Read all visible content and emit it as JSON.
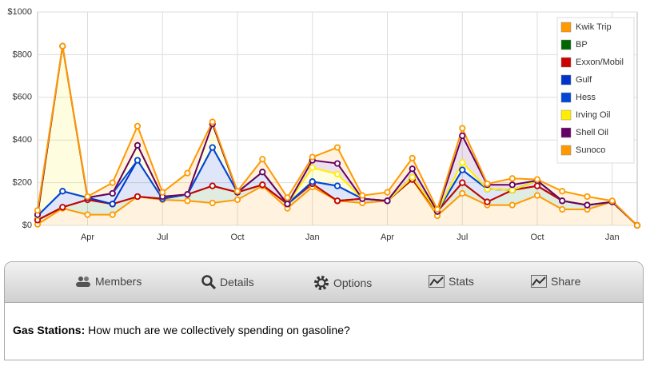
{
  "chart_data": {
    "type": "area",
    "stacked": true,
    "categories": [
      null,
      null,
      "Apr",
      null,
      null,
      "Jul",
      null,
      null,
      "Oct",
      null,
      null,
      "Jan",
      null,
      null,
      "Apr",
      null,
      null,
      "Jul",
      null,
      null,
      "Oct",
      null,
      null,
      "Jan",
      null
    ],
    "series": [
      {
        "name": "Kwik Trip",
        "color": "#ff9900",
        "values": [
          5,
          80,
          50,
          50,
          135,
          120,
          115,
          105,
          120,
          185,
          80,
          180,
          115,
          105,
          115,
          215,
          45,
          150,
          95,
          95,
          140,
          75,
          75,
          110,
          0
        ]
      },
      {
        "name": "BP",
        "color": "#006600",
        "values": [
          20,
          5,
          70,
          50,
          0,
          5,
          30,
          80,
          35,
          5,
          20,
          15,
          0,
          20,
          0,
          0,
          20,
          50,
          15,
          70,
          45,
          40,
          20,
          0,
          0
        ]
      },
      {
        "name": "Exxon/Mobil",
        "color": "#cc0000",
        "values": [
          0,
          0,
          0,
          0,
          0,
          0,
          0,
          0,
          0,
          0,
          0,
          0,
          0,
          0,
          0,
          0,
          0,
          0,
          0,
          0,
          0,
          0,
          0,
          0,
          0
        ]
      },
      {
        "name": "Gulf",
        "color": "#0033cc",
        "values": [
          20,
          75,
          10,
          0,
          170,
          0,
          0,
          180,
          0,
          60,
          0,
          10,
          70,
          0,
          0,
          10,
          0,
          60,
          60,
          0,
          25,
          0,
          0,
          0,
          0
        ]
      },
      {
        "name": "Hess",
        "color": "#0047d6",
        "values": [
          0,
          0,
          0,
          50,
          0,
          0,
          0,
          0,
          0,
          0,
          0,
          0,
          0,
          0,
          0,
          0,
          0,
          0,
          0,
          0,
          0,
          0,
          0,
          0,
          0
        ]
      },
      {
        "name": "Irving Oil",
        "color": "#ffee00",
        "values": [
          0,
          680,
          0,
          0,
          70,
          10,
          0,
          110,
          0,
          0,
          0,
          65,
          55,
          0,
          0,
          0,
          0,
          35,
          0,
          0,
          0,
          0,
          0,
          0,
          0
        ]
      },
      {
        "name": "Shell Oil",
        "color": "#660066",
        "values": [
          5,
          0,
          0,
          0,
          0,
          0,
          0,
          0,
          0,
          0,
          0,
          35,
          50,
          0,
          0,
          40,
          0,
          125,
          20,
          25,
          0,
          0,
          0,
          0,
          0
        ]
      },
      {
        "name": "Sunoco",
        "color": "#ff9900",
        "values": [
          20,
          0,
          5,
          50,
          90,
          20,
          100,
          10,
          5,
          60,
          30,
          15,
          75,
          15,
          40,
          50,
          10,
          35,
          5,
          30,
          5,
          45,
          40,
          5,
          0
        ]
      }
    ],
    "ylim": [
      0,
      1000
    ],
    "yticks": [
      {
        "value": 0,
        "label": "$0"
      },
      {
        "value": 200,
        "label": "$200"
      },
      {
        "value": 400,
        "label": "$400"
      },
      {
        "value": 600,
        "label": "$600"
      },
      {
        "value": 800,
        "label": "$800"
      },
      {
        "value": 1000,
        "label": "$1000"
      }
    ],
    "grid": true,
    "legend": "top-right"
  },
  "toolbar": [
    "Members",
    "Details",
    "Options",
    "Stats",
    "Share"
  ],
  "description": {
    "label": "Gas Stations:",
    "text": "How much are we collectively spending on gasoline?"
  }
}
